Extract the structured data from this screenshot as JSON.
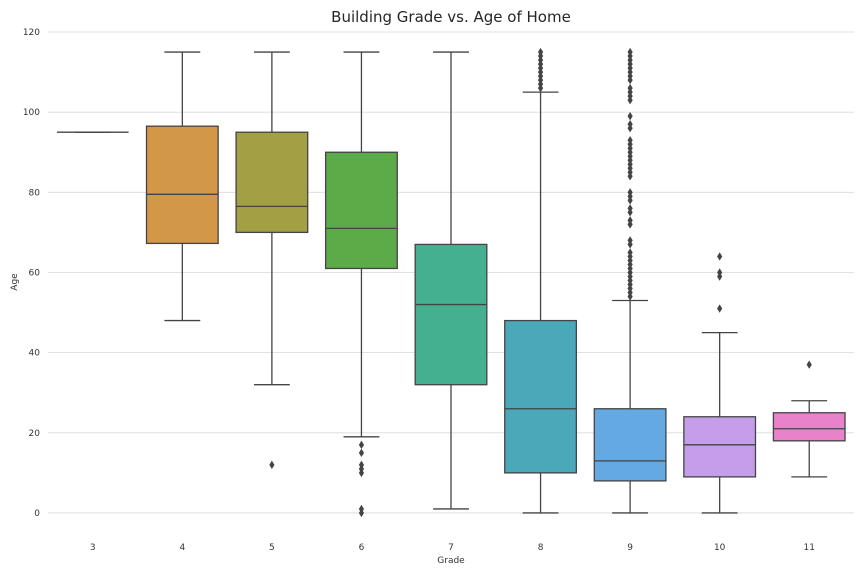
{
  "chart_data": {
    "type": "box",
    "title": "Building Grade vs. Age of Home",
    "xlabel": "Grade",
    "ylabel": "Age",
    "ylim": [
      -6,
      121
    ],
    "yticks": [
      0,
      20,
      40,
      60,
      80,
      100,
      120
    ],
    "grid": true,
    "categories": [
      "3",
      "4",
      "5",
      "6",
      "7",
      "8",
      "9",
      "10",
      "11"
    ],
    "colors": [
      "#3274a1",
      "#d39748",
      "#a29f45",
      "#5bab48",
      "#44b08f",
      "#4aa8b9",
      "#65a9e3",
      "#c49ee8",
      "#e782cb"
    ],
    "boxes": [
      {
        "grade": "3",
        "q1": 95,
        "median": 95,
        "q3": 95,
        "whisker_low": 95,
        "whisker_high": 95,
        "outliers": []
      },
      {
        "grade": "4",
        "q1": 67.25,
        "median": 79.5,
        "q3": 96.5,
        "whisker_low": 48,
        "whisker_high": 115,
        "outliers": []
      },
      {
        "grade": "5",
        "q1": 70,
        "median": 76.5,
        "q3": 95,
        "whisker_low": 32,
        "whisker_high": 115,
        "outliers": [
          12
        ]
      },
      {
        "grade": "6",
        "q1": 61,
        "median": 71,
        "q3": 90,
        "whisker_low": 19,
        "whisker_high": 115,
        "outliers": [
          0,
          1,
          10,
          11,
          12,
          15,
          17
        ]
      },
      {
        "grade": "7",
        "q1": 32,
        "median": 52,
        "q3": 67,
        "whisker_low": 1,
        "whisker_high": 115,
        "outliers": []
      },
      {
        "grade": "8",
        "q1": 10,
        "median": 26,
        "q3": 48,
        "whisker_low": 0,
        "whisker_high": 105,
        "outliers": [
          106,
          107,
          108,
          109,
          110,
          111,
          112,
          113,
          114,
          115
        ]
      },
      {
        "grade": "9",
        "q1": 8,
        "median": 13,
        "q3": 26,
        "whisker_low": 0,
        "whisker_high": 53,
        "outliers": [
          54,
          55,
          56,
          57,
          58,
          59,
          60,
          61,
          62,
          63,
          64,
          65,
          67,
          68,
          72,
          73,
          75,
          76,
          78,
          79,
          80,
          84,
          85,
          86,
          87,
          88,
          89,
          90,
          91,
          92,
          93,
          96,
          97,
          99,
          103,
          104,
          105,
          106,
          108,
          109,
          110,
          111,
          112,
          113,
          114,
          115
        ]
      },
      {
        "grade": "10",
        "q1": 9,
        "median": 17,
        "q3": 24,
        "whisker_low": 0,
        "whisker_high": 45,
        "outliers": [
          51,
          59,
          60,
          64
        ]
      },
      {
        "grade": "11",
        "q1": 18,
        "median": 21,
        "q3": 25,
        "whisker_low": 9,
        "whisker_high": 28,
        "outliers": [
          37
        ]
      }
    ]
  }
}
